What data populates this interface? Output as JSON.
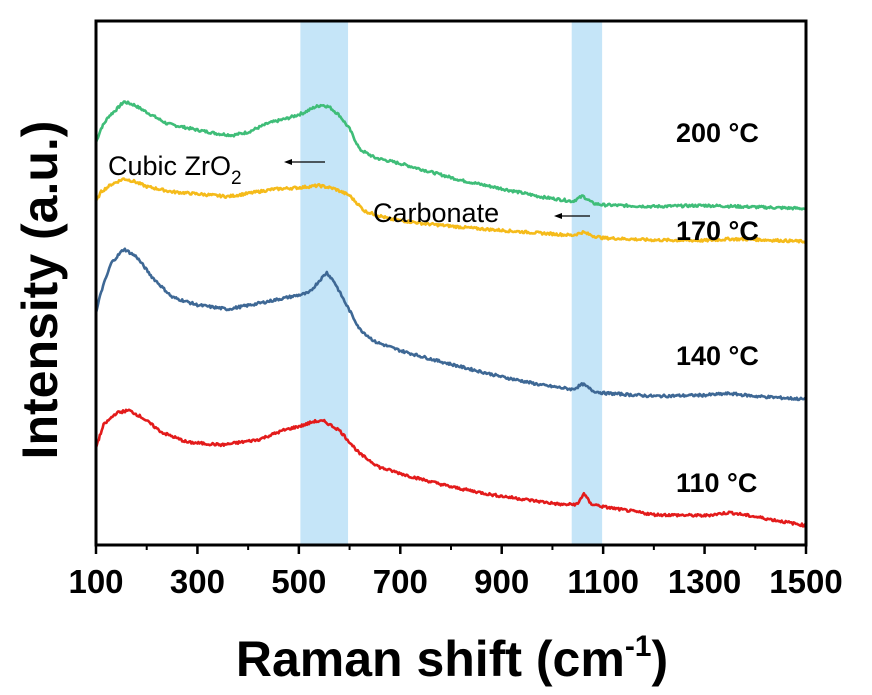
{
  "chart_data": {
    "type": "line",
    "xlabel": "Raman shift (cm",
    "xlabel_sup": "-1",
    "xlabel_end": ")",
    "ylabel": "Intensity (a.u.)",
    "xlim": [
      100,
      1500
    ],
    "ylim": [
      0,
      100
    ],
    "y_ticks_shown": false,
    "x_ticks": [
      100,
      300,
      500,
      700,
      900,
      1100,
      1300,
      1500
    ],
    "x_tick_labels": [
      "100",
      "300",
      "500",
      "700",
      "900",
      "1100",
      "1300",
      "1500"
    ],
    "grid": false,
    "highlight_bands": [
      {
        "name": "zro2-band",
        "x": [
          503,
          597
        ],
        "color": "#c5e5f8"
      },
      {
        "name": "carbonate-band",
        "x": [
          1038,
          1098
        ],
        "color": "#c5e5f8"
      }
    ],
    "annotations": [
      {
        "name": "cubic-zro2",
        "text": "Cubic ZrO",
        "sub": "2",
        "arrow_from": 325,
        "arrow_to": 285
      },
      {
        "name": "carbonate",
        "text": "Carbonate",
        "arrow_from": 590,
        "arrow_to": 555
      }
    ],
    "series": [
      {
        "name": "200 °C",
        "color": "#3fbd78",
        "points": [
          [
            100,
            76.8
          ],
          [
            110,
            79.5
          ],
          [
            125,
            81.8
          ],
          [
            140,
            83.1
          ],
          [
            155,
            84.6
          ],
          [
            175,
            84.0
          ],
          [
            200,
            82.6
          ],
          [
            240,
            80.4
          ],
          [
            300,
            79.2
          ],
          [
            340,
            78.5
          ],
          [
            370,
            78.2
          ],
          [
            400,
            78.8
          ],
          [
            440,
            80.5
          ],
          [
            480,
            81.5
          ],
          [
            510,
            82.5
          ],
          [
            530,
            83.5
          ],
          [
            545,
            84.0
          ],
          [
            560,
            83.6
          ],
          [
            580,
            82.0
          ],
          [
            600,
            79.4
          ],
          [
            620,
            75.5
          ],
          [
            650,
            73.9
          ],
          [
            700,
            72.8
          ],
          [
            760,
            71.2
          ],
          [
            820,
            69.6
          ],
          [
            900,
            68.0
          ],
          [
            980,
            66.4
          ],
          [
            1040,
            65.6
          ],
          [
            1060,
            66.6
          ],
          [
            1080,
            65.2
          ],
          [
            1100,
            64.9
          ],
          [
            1200,
            64.6
          ],
          [
            1300,
            64.8
          ],
          [
            1400,
            64.5
          ],
          [
            1500,
            64.2
          ]
        ]
      },
      {
        "name": "170 °C",
        "color": "#f5bb1b",
        "points": [
          [
            100,
            65.5
          ],
          [
            110,
            67.4
          ],
          [
            130,
            68.8
          ],
          [
            155,
            69.9
          ],
          [
            175,
            69.4
          ],
          [
            200,
            68.4
          ],
          [
            250,
            67.4
          ],
          [
            300,
            67.0
          ],
          [
            360,
            66.5
          ],
          [
            400,
            67.1
          ],
          [
            450,
            67.9
          ],
          [
            500,
            68.2
          ],
          [
            540,
            68.6
          ],
          [
            570,
            68.0
          ],
          [
            600,
            66.7
          ],
          [
            630,
            63.7
          ],
          [
            680,
            62.2
          ],
          [
            750,
            61.3
          ],
          [
            850,
            60.4
          ],
          [
            950,
            59.7
          ],
          [
            1040,
            59.1
          ],
          [
            1060,
            59.7
          ],
          [
            1080,
            59.0
          ],
          [
            1100,
            58.6
          ],
          [
            1200,
            58.2
          ],
          [
            1300,
            58.1
          ],
          [
            1350,
            58.4
          ],
          [
            1400,
            58.3
          ],
          [
            1500,
            57.9
          ]
        ]
      },
      {
        "name": "140 °C",
        "color": "#3e6895",
        "points": [
          [
            100,
            44.2
          ],
          [
            110,
            48.3
          ],
          [
            130,
            53.8
          ],
          [
            155,
            56.5
          ],
          [
            180,
            55.0
          ],
          [
            210,
            51.2
          ],
          [
            250,
            47.3
          ],
          [
            300,
            45.8
          ],
          [
            360,
            45.0
          ],
          [
            420,
            46.1
          ],
          [
            480,
            47.3
          ],
          [
            520,
            48.1
          ],
          [
            540,
            50.4
          ],
          [
            555,
            52.0
          ],
          [
            570,
            50.2
          ],
          [
            590,
            46.5
          ],
          [
            620,
            41.2
          ],
          [
            650,
            38.8
          ],
          [
            700,
            37.1
          ],
          [
            760,
            35.5
          ],
          [
            820,
            34.0
          ],
          [
            900,
            32.1
          ],
          [
            980,
            30.5
          ],
          [
            1040,
            29.7
          ],
          [
            1060,
            30.7
          ],
          [
            1080,
            29.4
          ],
          [
            1100,
            29.0
          ],
          [
            1200,
            28.4
          ],
          [
            1300,
            28.6
          ],
          [
            1350,
            28.9
          ],
          [
            1400,
            28.4
          ],
          [
            1500,
            27.8
          ]
        ]
      },
      {
        "name": "110 °C",
        "color": "#e31b1b",
        "points": [
          [
            100,
            18.7
          ],
          [
            115,
            22.9
          ],
          [
            140,
            25.2
          ],
          [
            165,
            25.7
          ],
          [
            190,
            24.4
          ],
          [
            230,
            21.5
          ],
          [
            280,
            19.6
          ],
          [
            350,
            19.1
          ],
          [
            420,
            20.1
          ],
          [
            470,
            21.9
          ],
          [
            510,
            22.9
          ],
          [
            530,
            23.6
          ],
          [
            550,
            23.6
          ],
          [
            580,
            21.9
          ],
          [
            620,
            17.4
          ],
          [
            660,
            14.8
          ],
          [
            720,
            13.1
          ],
          [
            800,
            11.1
          ],
          [
            880,
            9.6
          ],
          [
            960,
            8.5
          ],
          [
            1020,
            7.7
          ],
          [
            1050,
            7.8
          ],
          [
            1062,
            9.9
          ],
          [
            1075,
            7.9
          ],
          [
            1100,
            7.3
          ],
          [
            1200,
            5.8
          ],
          [
            1300,
            5.6
          ],
          [
            1350,
            6.2
          ],
          [
            1400,
            5.4
          ],
          [
            1500,
            3.7
          ]
        ]
      }
    ]
  }
}
